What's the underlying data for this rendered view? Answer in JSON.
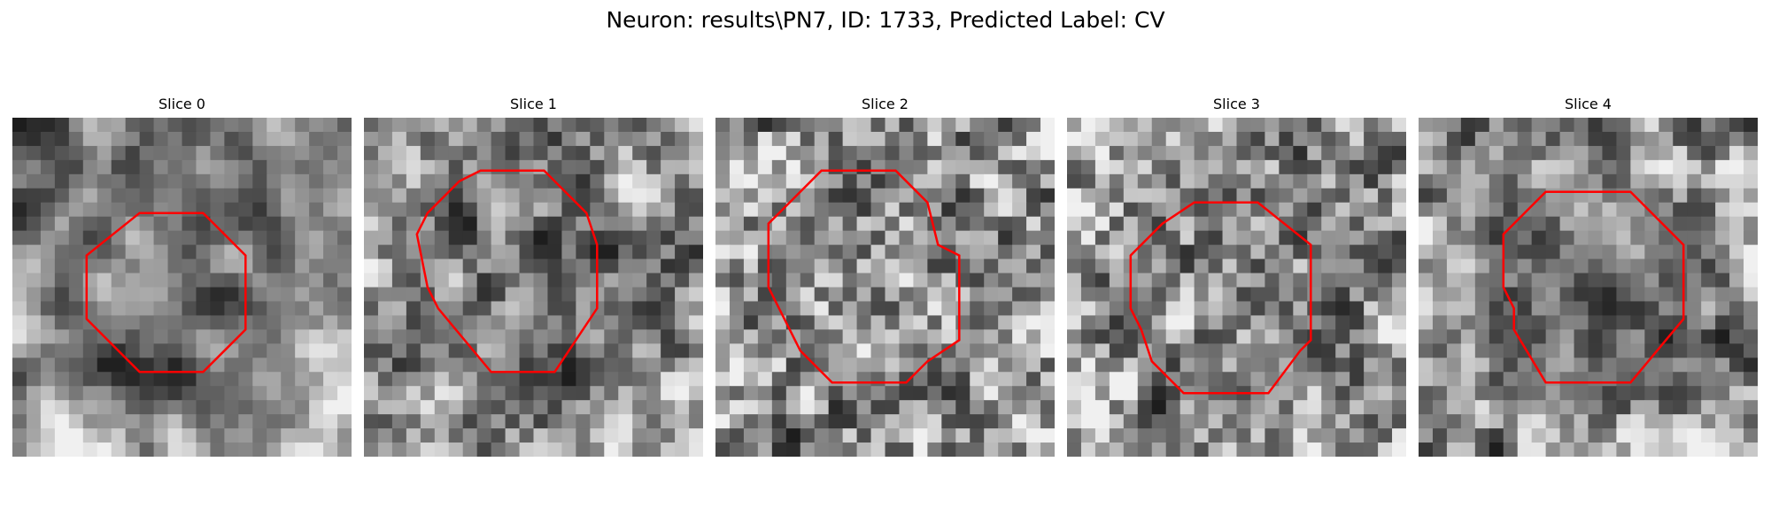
{
  "suptitle": "Neuron: results\\PN7, ID: 1733, Predicted Label: CV",
  "outline_color": "#ff0000",
  "colormap": "gray",
  "panels": [
    {
      "title": "Slice 0",
      "seed": 11,
      "blur": 1.4,
      "dark_center": 0.35,
      "outline": [
        [
          6,
          4.5
        ],
        [
          9,
          4.5
        ],
        [
          11,
          6.5
        ],
        [
          11,
          10
        ],
        [
          9,
          12
        ],
        [
          6,
          12
        ],
        [
          3.5,
          9.5
        ],
        [
          3.5,
          6.5
        ]
      ]
    },
    {
      "title": "Slice 1",
      "seed": 23,
      "blur": 0.8,
      "dark_center": 0.2,
      "outline": [
        [
          5.5,
          2.5
        ],
        [
          8.5,
          2.5
        ],
        [
          10.5,
          4.5
        ],
        [
          11,
          6
        ],
        [
          11,
          9
        ],
        [
          9,
          12
        ],
        [
          6,
          12
        ],
        [
          3.5,
          9
        ],
        [
          3,
          8
        ],
        [
          2.5,
          5.5
        ],
        [
          3,
          4.5
        ],
        [
          4.5,
          3
        ]
      ]
    },
    {
      "title": "Slice 2",
      "seed": 37,
      "blur": 0.7,
      "dark_center": 0.15,
      "outline": [
        [
          5,
          2.5
        ],
        [
          8.5,
          2.5
        ],
        [
          10,
          4
        ],
        [
          10.5,
          6
        ],
        [
          11.5,
          6.5
        ],
        [
          11.5,
          10.5
        ],
        [
          10,
          11.5
        ],
        [
          9,
          12.5
        ],
        [
          5.5,
          12.5
        ],
        [
          4,
          11
        ],
        [
          3,
          9
        ],
        [
          2.5,
          8
        ],
        [
          2.5,
          5
        ],
        [
          3,
          4.5
        ]
      ]
    },
    {
      "title": "Slice 3",
      "seed": 51,
      "blur": 0.3,
      "dark_center": 0.1,
      "outline": [
        [
          6,
          4
        ],
        [
          9,
          4
        ],
        [
          11.5,
          6
        ],
        [
          11.5,
          10.5
        ],
        [
          11,
          11
        ],
        [
          9.5,
          13
        ],
        [
          5.5,
          13
        ],
        [
          4,
          11.5
        ],
        [
          3.5,
          10
        ],
        [
          3,
          9
        ],
        [
          3,
          6.5
        ],
        [
          4.5,
          5
        ]
      ]
    },
    {
      "title": "Slice 4",
      "seed": 67,
      "blur": 1.2,
      "dark_center": 0.55,
      "outline": [
        [
          6,
          3.5
        ],
        [
          10,
          3.5
        ],
        [
          12.5,
          6
        ],
        [
          12.5,
          9.5
        ],
        [
          10,
          12.5
        ],
        [
          6,
          12.5
        ],
        [
          4.5,
          10
        ],
        [
          4.5,
          9
        ],
        [
          4,
          8
        ],
        [
          4,
          5.5
        ]
      ]
    }
  ]
}
